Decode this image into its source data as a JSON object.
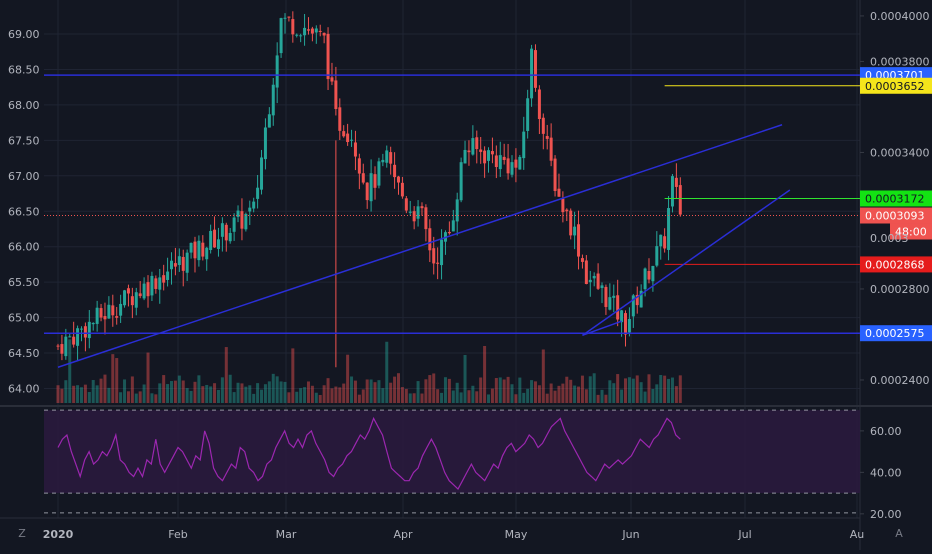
{
  "colors": {
    "background": "#131722",
    "grid": "#1f2433",
    "text": "#b2b5be",
    "up": "#26a69a",
    "down": "#ef5350",
    "trendline": "#2a2ed6",
    "rsi": "#9c27b0",
    "rsi_band": "#2a1a3d"
  },
  "chart_data": [
    {
      "type": "candlestick",
      "title": "",
      "x_ticks": [
        "2020",
        "Feb",
        "Mar",
        "Apr",
        "May",
        "Jun",
        "Jul",
        "Au"
      ],
      "left_axis": {
        "ticks": [
          "69.00",
          "68.50",
          "68.00",
          "67.50",
          "67.00",
          "66.50",
          "66.00",
          "65.50",
          "65.00",
          "64.50",
          "64.00"
        ],
        "range": [
          63.8,
          69.4
        ]
      },
      "right_axis": {
        "ticks": [
          "0.0004000",
          "0.0003800",
          "0.0003400",
          "0.0002800",
          "0.0002400"
        ],
        "range": [
          0.000229,
          0.000407
        ]
      },
      "candle_series": {
        "date_range": [
          "2020-01-01",
          "2020-06-08"
        ],
        "approx_close_path": [
          [
            "2020-01-01",
            64.6
          ],
          [
            "2020-02-20",
            66.5
          ],
          [
            "2020-02-27",
            69.2
          ],
          [
            "2020-03-04",
            69.1
          ],
          [
            "2020-03-09",
            68.9
          ],
          [
            "2020-03-12",
            67.8
          ],
          [
            "2020-03-16",
            67.6
          ],
          [
            "2020-03-20",
            66.8
          ],
          [
            "2020-03-25",
            67.2
          ],
          [
            "2020-03-30",
            66.6
          ],
          [
            "2020-04-03",
            66.4
          ],
          [
            "2020-04-06",
            65.8
          ],
          [
            "2020-04-10",
            66.2
          ],
          [
            "2020-04-14",
            67.4
          ],
          [
            "2020-04-20",
            67.3
          ],
          [
            "2020-04-24",
            67.2
          ],
          [
            "2020-04-28",
            67.1
          ],
          [
            "2020-05-01",
            68.7
          ],
          [
            "2020-05-04",
            67.6
          ],
          [
            "2020-05-08",
            66.7
          ],
          [
            "2020-05-12",
            66.2
          ],
          [
            "2020-05-15",
            65.6
          ],
          [
            "2020-05-20",
            65.3
          ],
          [
            "2020-05-25",
            64.9
          ],
          [
            "2020-05-28",
            65.3
          ],
          [
            "2020-06-01",
            65.8
          ],
          [
            "2020-06-04",
            66.1
          ],
          [
            "2020-06-06",
            66.9
          ],
          [
            "2020-06-08",
            66.5
          ]
        ]
      },
      "volume_note": "volume histogram along the bottom of the price pane",
      "drawings": [
        {
          "kind": "horizontal",
          "value": 68.42,
          "color": "#2a2ed6",
          "price_tag": "0.0003701",
          "tag_color": "#2962ff"
        },
        {
          "kind": "horizontal",
          "value": 64.78,
          "color": "#2a2ed6",
          "price_tag": "0.0002575",
          "tag_color": "#2962ff"
        },
        {
          "kind": "segment",
          "from": [
            "2020-06-04",
            68.27
          ],
          "to": [
            "2020-07-31",
            68.27
          ],
          "color": "#f5e51b",
          "price_tag": "0.0003652",
          "tag_color": "#f5e51b"
        },
        {
          "kind": "segment",
          "from": [
            "2020-06-04",
            66.68
          ],
          "to": [
            "2020-07-31",
            66.68
          ],
          "color": "#2fe32f",
          "price_tag": "0.0003172",
          "tag_color": "#13e313"
        },
        {
          "kind": "segment",
          "from": [
            "2020-06-04",
            65.75
          ],
          "to": [
            "2020-07-31",
            65.75
          ],
          "color": "#e51c1c",
          "price_tag": "0.0002868",
          "tag_color": "#e51c1c"
        },
        {
          "kind": "dotted",
          "value": 66.44,
          "color": "#ef5350",
          "price_tag": "0.0003093",
          "tag_color": "#ef5350",
          "countdown": "48:00"
        },
        {
          "kind": "trendline",
          "from": [
            "2020-01-01",
            64.3
          ],
          "to": [
            "2020-07-04",
            67.72
          ],
          "color": "#2a2ed6"
        },
        {
          "kind": "trendline",
          "from": [
            "2020-05-14",
            64.75
          ],
          "to": [
            "2020-07-06",
            66.8
          ],
          "color": "#2a2ed6"
        },
        {
          "kind": "trendline",
          "from": [
            "2020-05-14",
            64.75
          ],
          "to": [
            "2020-05-24",
            64.95
          ],
          "color": "#2a2ed6"
        }
      ]
    },
    {
      "type": "line",
      "title": "",
      "series": [
        {
          "values": [
            52,
            56,
            58,
            50,
            44,
            38,
            46,
            50,
            44,
            46,
            50,
            48,
            52,
            58,
            46,
            44,
            40,
            38,
            42,
            38,
            46,
            44,
            56,
            44,
            40,
            44,
            48,
            52,
            50,
            46,
            42,
            48,
            46,
            60,
            54,
            42,
            38,
            36,
            40,
            44,
            42,
            52,
            50,
            42,
            40,
            36,
            38,
            44,
            46,
            52,
            56,
            60,
            54,
            52,
            56,
            52,
            58,
            60,
            54,
            50,
            46,
            40,
            38,
            42,
            44,
            48,
            50,
            54,
            58,
            56,
            60,
            66,
            62,
            58,
            50,
            42,
            40,
            38,
            36,
            36,
            40,
            42,
            48,
            52,
            56,
            52,
            46,
            40,
            36,
            34,
            32,
            36,
            40,
            44,
            40,
            38,
            36,
            40,
            44,
            42,
            48,
            52,
            54,
            50,
            52,
            54,
            58,
            56,
            52,
            54,
            58,
            62,
            64,
            66,
            60,
            56,
            52,
            48,
            44,
            40,
            38,
            36,
            40,
            44,
            42,
            44,
            46,
            44,
            46,
            48,
            52,
            56,
            54,
            52,
            56,
            58,
            62,
            66,
            64,
            58,
            56
          ]
        }
      ],
      "date_range": [
        "2020-01-01",
        "2020-06-08"
      ],
      "y_ticks": [
        "60.00",
        "40.00",
        "20.00"
      ],
      "y_range": [
        18,
        72
      ],
      "bands": [
        70,
        30
      ]
    }
  ]
}
